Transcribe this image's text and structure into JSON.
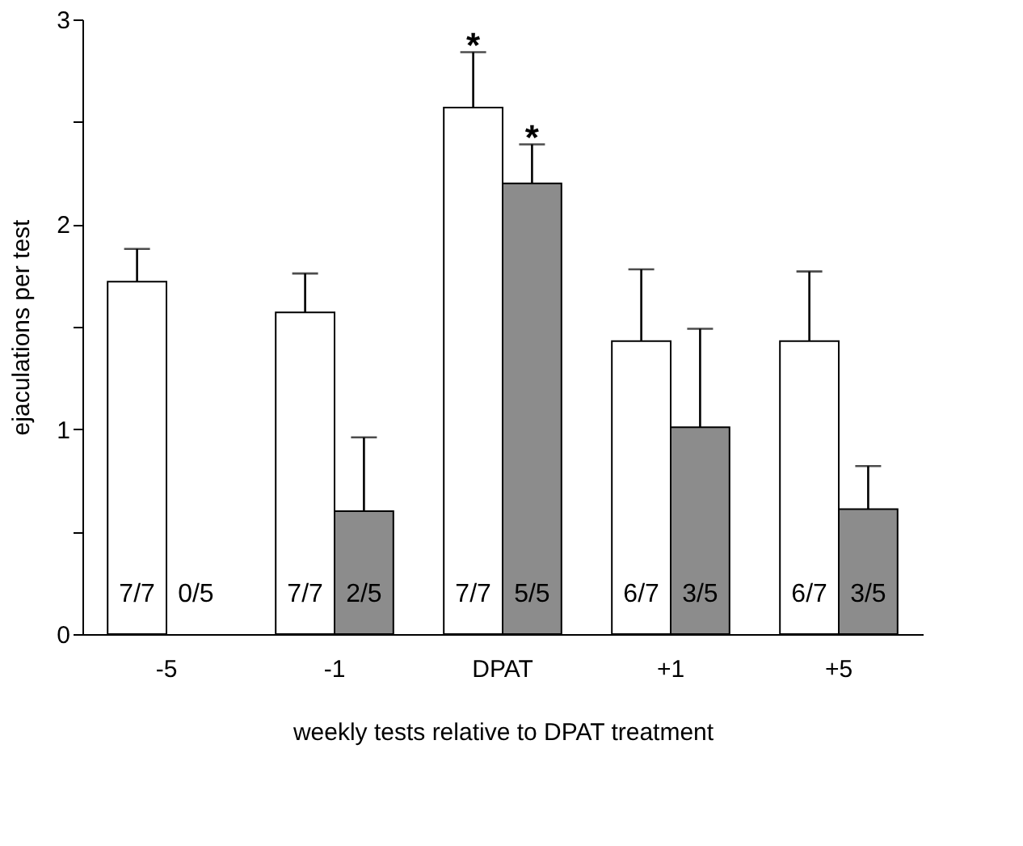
{
  "chart_data": {
    "type": "bar",
    "xlabel": "weekly tests relative to DPAT treatment",
    "ylabel": "ejaculations per test",
    "categories": [
      "-5",
      "-1",
      "DPAT",
      "+1",
      "+5"
    ],
    "series": [
      {
        "color": "#ffffff",
        "values": [
          1.72,
          1.57,
          2.57,
          1.43,
          1.43
        ],
        "errors": [
          0.16,
          0.19,
          0.27,
          0.35,
          0.34
        ]
      },
      {
        "color": "#8c8c8c",
        "values": [
          0,
          0.6,
          2.2,
          1.01,
          0.61
        ],
        "errors": [
          null,
          0.36,
          0.19,
          0.48,
          0.21
        ]
      }
    ],
    "annotations": [
      "7/7",
      "0/5",
      "7/7",
      "2/5",
      "7/7",
      "5/5",
      "6/7",
      "3/5",
      "6/7",
      "3/5",
      "*",
      "*"
    ],
    "ylim": [
      0,
      3
    ],
    "yticks": [
      0,
      {
        "value": 0.5,
        "label": null
      },
      1,
      {
        "value": 1.5,
        "label": null
      },
      2,
      {
        "value": 2.5,
        "label": null
      },
      3
    ],
    "grid": false,
    "legend": false
  }
}
